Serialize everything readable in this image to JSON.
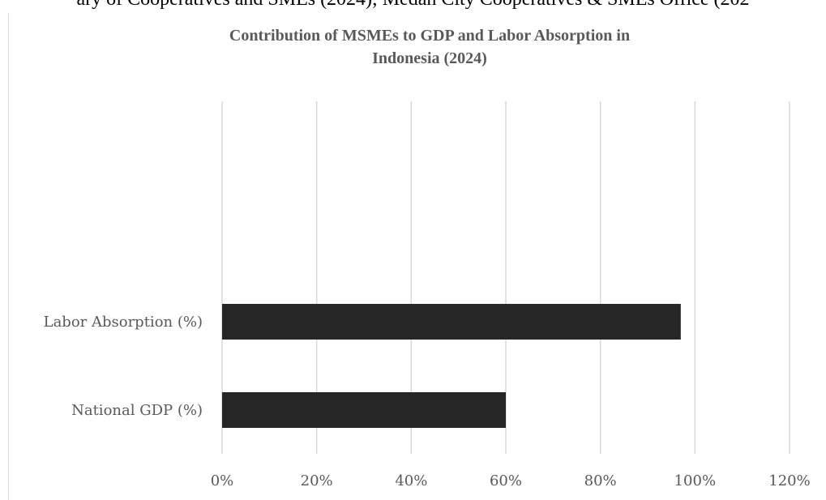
{
  "page_caption": "ary of Cooperatives and SMEs (2024); Medan City Cooperatives & SMEs Office (202",
  "chart_data": {
    "type": "bar",
    "orientation": "horizontal",
    "title_line1": "Contribution of MSMEs to GDP and Labor Absorption in",
    "title_line2": "Indonesia (2024)",
    "categories": [
      "Labor Absorption (%)",
      "National GDP (%)"
    ],
    "values": [
      0.97,
      0.6
    ],
    "xlim": [
      0,
      1.2
    ],
    "xticks": [
      "0%",
      "20%",
      "40%",
      "60%",
      "80%",
      "100%",
      "120%"
    ],
    "xlabel": "",
    "ylabel": "",
    "grid": "vertical",
    "legend": "none",
    "bar_color": "#262626",
    "grid_color": "#d9d9d9"
  }
}
